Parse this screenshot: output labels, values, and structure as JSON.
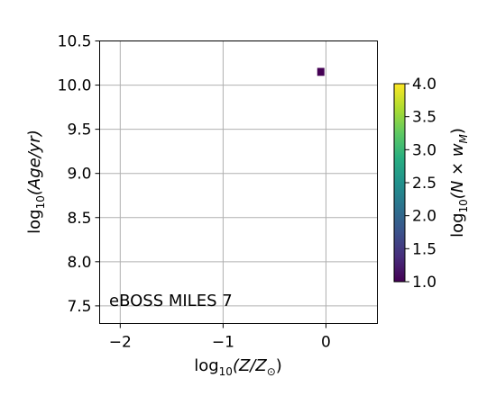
{
  "chart_data": {
    "type": "heatmap",
    "xlabel_parts": {
      "pre": "log",
      "sub": "10",
      "post": "(Z/Z",
      "sun": "⊙",
      "end": ")"
    },
    "ylabel_parts": {
      "pre": "log",
      "sub": "10",
      "post": "(Age/yr)"
    },
    "xlim": [
      -2.2,
      0.5
    ],
    "ylim": [
      7.3,
      10.5
    ],
    "x_ticks": [
      -2,
      -1,
      0
    ],
    "x_tick_labels": [
      "−2",
      "−1",
      "0"
    ],
    "y_ticks": [
      7.5,
      8.0,
      8.5,
      9.0,
      9.5,
      10.0,
      10.5
    ],
    "y_tick_labels": [
      "7.5",
      "8.0",
      "8.5",
      "9.0",
      "9.5",
      "10.0",
      "10.5"
    ],
    "grid": true,
    "annotation": "eBOSS MILES 7",
    "annotation_position": "bottom-left",
    "bins": [
      {
        "x": -0.05,
        "y": 10.15,
        "value": 1.0,
        "dx": 0.07,
        "dy": 0.09
      }
    ],
    "colorbar": {
      "label_parts": {
        "pre": "log",
        "sub": "10",
        "post": "(N × w",
        "msub": "M",
        "end": ")"
      },
      "range": [
        1.0,
        4.0
      ],
      "ticks": [
        1.0,
        1.5,
        2.0,
        2.5,
        3.0,
        3.5,
        4.0
      ],
      "tick_labels": [
        "1.0",
        "1.5",
        "2.0",
        "2.5",
        "3.0",
        "3.5",
        "4.0"
      ],
      "colormap": "viridis"
    }
  }
}
